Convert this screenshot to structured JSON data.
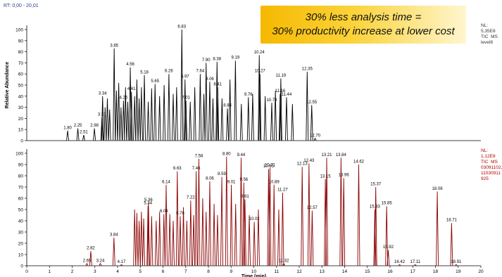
{
  "header": {
    "rt_range": "RT: 0,00 - 20,01",
    "banner_line1": "30% less analysis time =",
    "banner_line2": "30% productivity increase at lower cost"
  },
  "colors": {
    "top_trace": "#000000",
    "bottom_trace": "#8b0000",
    "nl_bottom": "#b00000",
    "green": "#3aa040"
  },
  "chart_data": [
    {
      "type": "line",
      "panel": "top",
      "info": {
        "nl": "NL:",
        "value": "5,35E8",
        "mode": "TIC  MS",
        "file": "level8"
      },
      "ylabel": "Relative Abundance",
      "xlabel": "",
      "xlim": [
        0,
        20
      ],
      "ylim": [
        0,
        100
      ],
      "yticks": [
        0,
        10,
        20,
        30,
        40,
        50,
        60,
        70,
        80,
        90,
        100
      ],
      "xticks": [],
      "peaks": [
        {
          "x": 1.8,
          "y": 9,
          "label": "1.80"
        },
        {
          "x": 2.25,
          "y": 11,
          "label": "2.25"
        },
        {
          "x": 2.51,
          "y": 5,
          "label": "2.51"
        },
        {
          "x": 2.98,
          "y": 11,
          "label": "2.98"
        },
        {
          "x": 3.31,
          "y": 21,
          "label": "3.31"
        },
        {
          "x": 3.34,
          "y": 40,
          "label": "3.34"
        },
        {
          "x": 3.45,
          "y": 30,
          "label": ""
        },
        {
          "x": 3.55,
          "y": 38,
          "label": ""
        },
        {
          "x": 3.65,
          "y": 28,
          "label": ""
        },
        {
          "x": 3.85,
          "y": 83,
          "label": "3.85"
        },
        {
          "x": 3.95,
          "y": 45,
          "label": ""
        },
        {
          "x": 4.05,
          "y": 52,
          "label": ""
        },
        {
          "x": 4.15,
          "y": 30,
          "label": ""
        },
        {
          "x": 4.26,
          "y": 36,
          "label": "4.26"
        },
        {
          "x": 4.35,
          "y": 48,
          "label": ""
        },
        {
          "x": 4.45,
          "y": 35,
          "label": ""
        },
        {
          "x": 4.56,
          "y": 66,
          "label": "4.56"
        },
        {
          "x": 4.61,
          "y": 44,
          "label": "4.61"
        },
        {
          "x": 4.75,
          "y": 40,
          "label": ""
        },
        {
          "x": 4.85,
          "y": 55,
          "label": ""
        },
        {
          "x": 4.95,
          "y": 38,
          "label": ""
        },
        {
          "x": 5.05,
          "y": 48,
          "label": ""
        },
        {
          "x": 5.18,
          "y": 59,
          "label": "5.18"
        },
        {
          "x": 5.35,
          "y": 35,
          "label": ""
        },
        {
          "x": 5.5,
          "y": 47,
          "label": ""
        },
        {
          "x": 5.65,
          "y": 51,
          "label": "5.65"
        },
        {
          "x": 5.85,
          "y": 40,
          "label": ""
        },
        {
          "x": 6.05,
          "y": 50,
          "label": ""
        },
        {
          "x": 6.26,
          "y": 60,
          "label": "6.26"
        },
        {
          "x": 6.45,
          "y": 42,
          "label": ""
        },
        {
          "x": 6.6,
          "y": 48,
          "label": ""
        },
        {
          "x": 6.83,
          "y": 100,
          "label": "6.83"
        },
        {
          "x": 6.97,
          "y": 55,
          "label": "6.97"
        },
        {
          "x": 7.01,
          "y": 36,
          "label": "7.01"
        },
        {
          "x": 7.2,
          "y": 35,
          "label": ""
        },
        {
          "x": 7.4,
          "y": 48,
          "label": ""
        },
        {
          "x": 7.64,
          "y": 60,
          "label": "7.64"
        },
        {
          "x": 7.8,
          "y": 42,
          "label": ""
        },
        {
          "x": 7.9,
          "y": 70,
          "label": "7.90"
        },
        {
          "x": 8.06,
          "y": 53,
          "label": "8.06"
        },
        {
          "x": 8.2,
          "y": 38,
          "label": ""
        },
        {
          "x": 8.38,
          "y": 71,
          "label": "8.38"
        },
        {
          "x": 8.41,
          "y": 48,
          "label": "8.41"
        },
        {
          "x": 8.6,
          "y": 38,
          "label": ""
        },
        {
          "x": 8.84,
          "y": 29,
          "label": "8.84"
        },
        {
          "x": 8.95,
          "y": 55,
          "label": ""
        },
        {
          "x": 9.19,
          "y": 72,
          "label": "9.19"
        },
        {
          "x": 9.45,
          "y": 33,
          "label": ""
        },
        {
          "x": 9.76,
          "y": 39,
          "label": "9.76"
        },
        {
          "x": 9.95,
          "y": 42,
          "label": ""
        },
        {
          "x": 10.24,
          "y": 77,
          "label": "10.24"
        },
        {
          "x": 10.27,
          "y": 60,
          "label": "10.27"
        },
        {
          "x": 10.5,
          "y": 40,
          "label": ""
        },
        {
          "x": 10.79,
          "y": 34,
          "label": "10.79"
        },
        {
          "x": 10.95,
          "y": 45,
          "label": ""
        },
        {
          "x": 11.16,
          "y": 42,
          "label": "11.16"
        },
        {
          "x": 11.19,
          "y": 56,
          "label": "11.19"
        },
        {
          "x": 11.44,
          "y": 39,
          "label": "11.44"
        },
        {
          "x": 11.7,
          "y": 33,
          "label": ""
        },
        {
          "x": 12.35,
          "y": 62,
          "label": "12.35"
        },
        {
          "x": 12.55,
          "y": 32,
          "label": "12.55"
        },
        {
          "x": 12.7,
          "y": 2,
          "label": "12.70"
        }
      ]
    },
    {
      "type": "line",
      "panel": "bottom",
      "info": {
        "nl": "NL:",
        "value": "1,12E8",
        "mode": "TIC  MS",
        "file": "03091102,\n11030911\n925"
      },
      "ylabel": "",
      "xlabel": "Time (min)",
      "xlim": [
        0,
        20
      ],
      "ylim": [
        0,
        100
      ],
      "yticks": [
        0,
        10,
        20,
        30,
        40,
        50,
        60,
        70,
        80,
        90,
        100
      ],
      "xticks": [
        "0",
        "1",
        "2",
        "3",
        "4",
        "5",
        "6",
        "7",
        "8",
        "9",
        "10",
        "11",
        "12",
        "13",
        "14",
        "15",
        "16",
        "17",
        "18",
        "19",
        "20"
      ],
      "peaks": [
        {
          "x": 2.65,
          "y": 2,
          "label": "2.65"
        },
        {
          "x": 2.82,
          "y": 13,
          "label": "2.82"
        },
        {
          "x": 3.24,
          "y": 2,
          "label": "3.24"
        },
        {
          "x": 3.84,
          "y": 25,
          "label": "3.84"
        },
        {
          "x": 4.17,
          "y": 1,
          "label": "4.17"
        },
        {
          "x": 4.75,
          "y": 50,
          "label": ""
        },
        {
          "x": 4.85,
          "y": 47,
          "label": ""
        },
        {
          "x": 4.95,
          "y": 40,
          "label": ""
        },
        {
          "x": 5.05,
          "y": 48,
          "label": ""
        },
        {
          "x": 5.15,
          "y": 42,
          "label": ""
        },
        {
          "x": 5.34,
          "y": 53,
          "label": "5.34"
        },
        {
          "x": 5.36,
          "y": 56,
          "label": "5.36"
        },
        {
          "x": 5.5,
          "y": 44,
          "label": ""
        },
        {
          "x": 5.7,
          "y": 40,
          "label": ""
        },
        {
          "x": 5.85,
          "y": 48,
          "label": ""
        },
        {
          "x": 6.04,
          "y": 46,
          "label": "6.04"
        },
        {
          "x": 6.14,
          "y": 72,
          "label": "6.14"
        },
        {
          "x": 6.3,
          "y": 46,
          "label": ""
        },
        {
          "x": 6.45,
          "y": 40,
          "label": ""
        },
        {
          "x": 6.63,
          "y": 84,
          "label": "6.63"
        },
        {
          "x": 6.76,
          "y": 44,
          "label": "6.76"
        },
        {
          "x": 6.9,
          "y": 52,
          "label": ""
        },
        {
          "x": 7.05,
          "y": 40,
          "label": ""
        },
        {
          "x": 7.22,
          "y": 58,
          "label": "7.22"
        },
        {
          "x": 7.35,
          "y": 45,
          "label": ""
        },
        {
          "x": 7.46,
          "y": 84,
          "label": "7.46"
        },
        {
          "x": 7.58,
          "y": 95,
          "label": "7.58"
        },
        {
          "x": 7.75,
          "y": 60,
          "label": ""
        },
        {
          "x": 7.9,
          "y": 48,
          "label": ""
        },
        {
          "x": 8.06,
          "y": 75,
          "label": "8.06"
        },
        {
          "x": 8.25,
          "y": 55,
          "label": ""
        },
        {
          "x": 8.4,
          "y": 45,
          "label": ""
        },
        {
          "x": 8.59,
          "y": 79,
          "label": "8.59"
        },
        {
          "x": 8.8,
          "y": 97,
          "label": "8.80"
        },
        {
          "x": 9.01,
          "y": 72,
          "label": "9.01"
        },
        {
          "x": 9.2,
          "y": 55,
          "label": ""
        },
        {
          "x": 9.44,
          "y": 96,
          "label": "9.44"
        },
        {
          "x": 9.56,
          "y": 74,
          "label": "9.56"
        },
        {
          "x": 9.61,
          "y": 59,
          "label": "9.61"
        },
        {
          "x": 9.8,
          "y": 45,
          "label": ""
        },
        {
          "x": 10.02,
          "y": 39,
          "label": "10.02"
        },
        {
          "x": 10.2,
          "y": 50,
          "label": ""
        },
        {
          "x": 10.65,
          "y": 86,
          "label": "10.65"
        },
        {
          "x": 10.71,
          "y": 87,
          "label": "10.71"
        },
        {
          "x": 10.89,
          "y": 72,
          "label": "10.89"
        },
        {
          "x": 11.1,
          "y": 50,
          "label": ""
        },
        {
          "x": 11.27,
          "y": 65,
          "label": "11.27"
        },
        {
          "x": 11.32,
          "y": 2,
          "label": "11.32"
        },
        {
          "x": 12.13,
          "y": 88,
          "label": "12.13"
        },
        {
          "x": 12.43,
          "y": 91,
          "label": "12.43"
        },
        {
          "x": 12.57,
          "y": 49,
          "label": "12.57"
        },
        {
          "x": 13.15,
          "y": 77,
          "label": "13.15"
        },
        {
          "x": 13.21,
          "y": 96,
          "label": "13.21"
        },
        {
          "x": 13.84,
          "y": 96,
          "label": "13.84"
        },
        {
          "x": 13.96,
          "y": 78,
          "label": "13.96"
        },
        {
          "x": 14.62,
          "y": 90,
          "label": "14.62"
        },
        {
          "x": 15.33,
          "y": 50,
          "label": "15.33"
        },
        {
          "x": 15.37,
          "y": 70,
          "label": "15.37"
        },
        {
          "x": 15.85,
          "y": 53,
          "label": "15.85"
        },
        {
          "x": 15.92,
          "y": 14,
          "label": "15.92"
        },
        {
          "x": 16.42,
          "y": 1,
          "label": "16.42"
        },
        {
          "x": 17.11,
          "y": 1,
          "label": "17.11"
        },
        {
          "x": 18.08,
          "y": 66,
          "label": "18.08"
        },
        {
          "x": 18.71,
          "y": 38,
          "label": "18.71"
        },
        {
          "x": 18.91,
          "y": 1,
          "label": "18.91"
        }
      ]
    }
  ]
}
